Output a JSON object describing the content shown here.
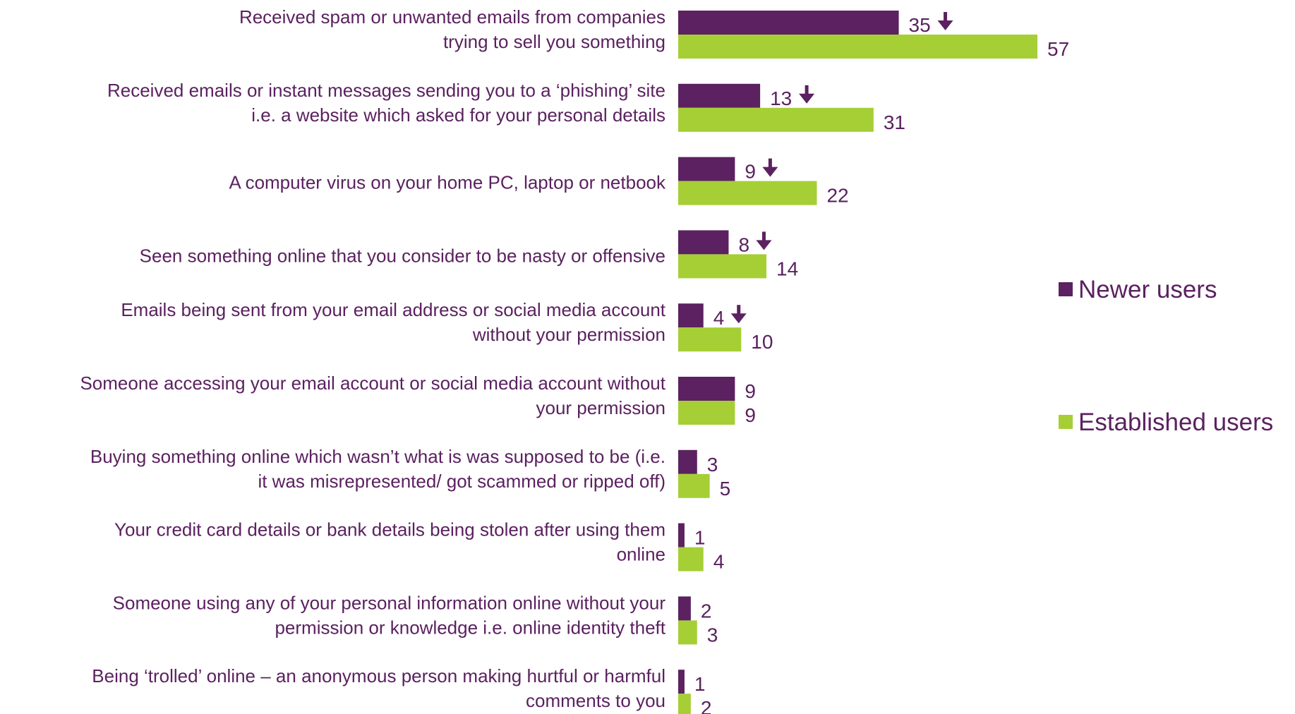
{
  "chart_data": {
    "type": "bar",
    "orientation": "horizontal",
    "categories": [
      [
        "Received spam or unwanted emails from companies",
        "trying to sell you something"
      ],
      [
        "Received emails or instant messages sending you to a ‘phishing’ site",
        "i.e. a website which asked for your personal details"
      ],
      [
        "A computer virus on your home PC, laptop or netbook"
      ],
      [
        "Seen something online that you consider to be nasty or offensive"
      ],
      [
        "Emails being sent from your email address or social media account",
        "without your permission"
      ],
      [
        "Someone accessing your email account or social media account without",
        "your permission"
      ],
      [
        "Buying something online which wasn’t what is was supposed to be (i.e.",
        "it was misrepresented/ got scammed or ripped off)"
      ],
      [
        "Your credit card details or bank details being stolen after using them",
        "online"
      ],
      [
        "Someone using any of your personal information online without your",
        "permission or knowledge i.e. online identity theft"
      ],
      [
        "Being ‘trolled’ online – an anonymous person making hurtful or harmful",
        "comments to you"
      ]
    ],
    "series": [
      {
        "name": "Newer users",
        "color": "#5b2160",
        "values": [
          35,
          13,
          9,
          8,
          4,
          9,
          3,
          1,
          2,
          1
        ],
        "significantly_lower": [
          true,
          true,
          true,
          true,
          true,
          false,
          false,
          false,
          false,
          false
        ]
      },
      {
        "name": "Established users",
        "color": "#a5cf35",
        "values": [
          57,
          31,
          22,
          14,
          10,
          9,
          5,
          4,
          3,
          2
        ]
      }
    ],
    "legend_position": "right",
    "marker_icon": "arrow-down-icon",
    "grid": false
  }
}
